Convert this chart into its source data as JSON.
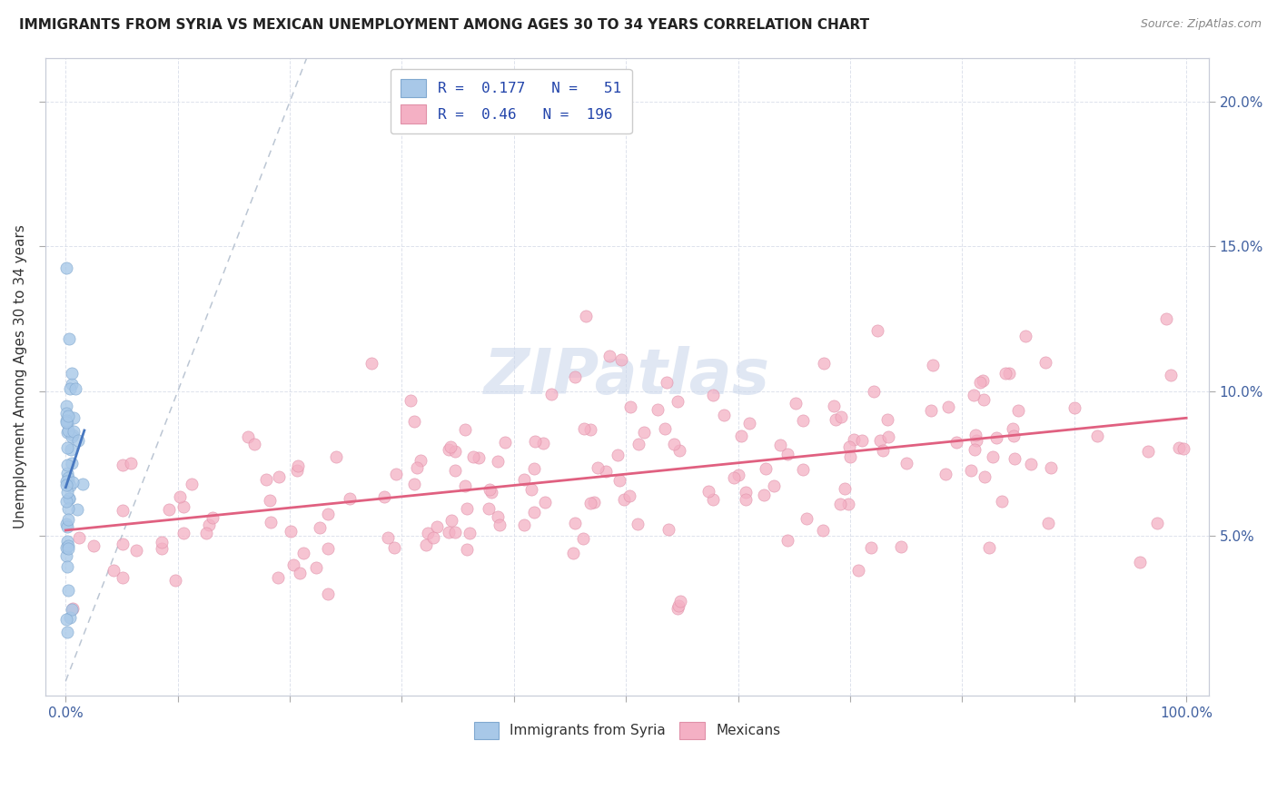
{
  "title": "IMMIGRANTS FROM SYRIA VS MEXICAN UNEMPLOYMENT AMONG AGES 30 TO 34 YEARS CORRELATION CHART",
  "source": "Source: ZipAtlas.com",
  "ylabel": "Unemployment Among Ages 30 to 34 years",
  "syria_color": "#a8c8e8",
  "syria_edge": "#80a8d0",
  "syria_line_color": "#4878c0",
  "mexico_color": "#f4b0c4",
  "mexico_edge": "#e090a8",
  "mexico_line_color": "#e06080",
  "ref_line_color": "#b8c4d8",
  "watermark_color": "#ccd8ec",
  "syria_R": 0.177,
  "syria_N": 51,
  "mexico_R": 0.46,
  "mexico_N": 196,
  "xmin": 0.0,
  "xmax": 1.0,
  "ymin": 0.0,
  "ymax": 0.21,
  "yticks": [
    0.05,
    0.1,
    0.15,
    0.2
  ],
  "ytick_labels": [
    "5.0%",
    "10.0%",
    "15.0%",
    "20.0%"
  ],
  "background": "#ffffff",
  "grid_color": "#d8dde8",
  "title_fontsize": 11,
  "axis_fontsize": 11,
  "tick_color": "#4060a0",
  "legend_text_color": "#2244aa"
}
